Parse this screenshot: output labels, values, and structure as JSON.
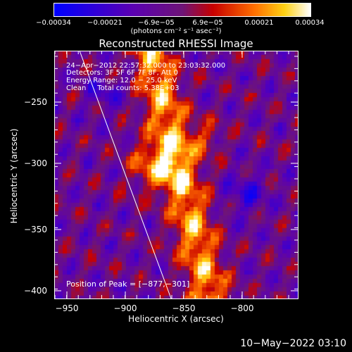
{
  "colorbar": {
    "ticks": [
      "−0.00034",
      "−0.00021",
      "−6.9e−05",
      "6.9e−05",
      "0.00021",
      "0.00034"
    ],
    "units": "(photons cm⁻² s⁻¹ asec⁻²)"
  },
  "image": {
    "title": "Reconstructed RHESSI Image",
    "info": [
      "24−Apr−2012 22:57:32.000 to 23:03:32.000",
      "Detectors: 3F 5F 6F 7F 8F, Att 0",
      "Energy Range: 12.0 − 25.0 keV",
      "Clean     Total counts: 5.38E+03"
    ],
    "peak_text": "Position of Peak = [−877,−301]"
  },
  "axes": {
    "xlabel": "Heliocentric X (arcsec)",
    "ylabel": "Heliocentric Y (arcsec)",
    "xticks": [
      "−950",
      "−900",
      "−850",
      "−800"
    ],
    "yticks": [
      "−250",
      "−300",
      "−350",
      "−400"
    ]
  },
  "footer": {
    "timestamp": "10−May−2022 03:10"
  },
  "colors": {
    "background": "#000000",
    "limb_line": "#ffffff"
  }
}
